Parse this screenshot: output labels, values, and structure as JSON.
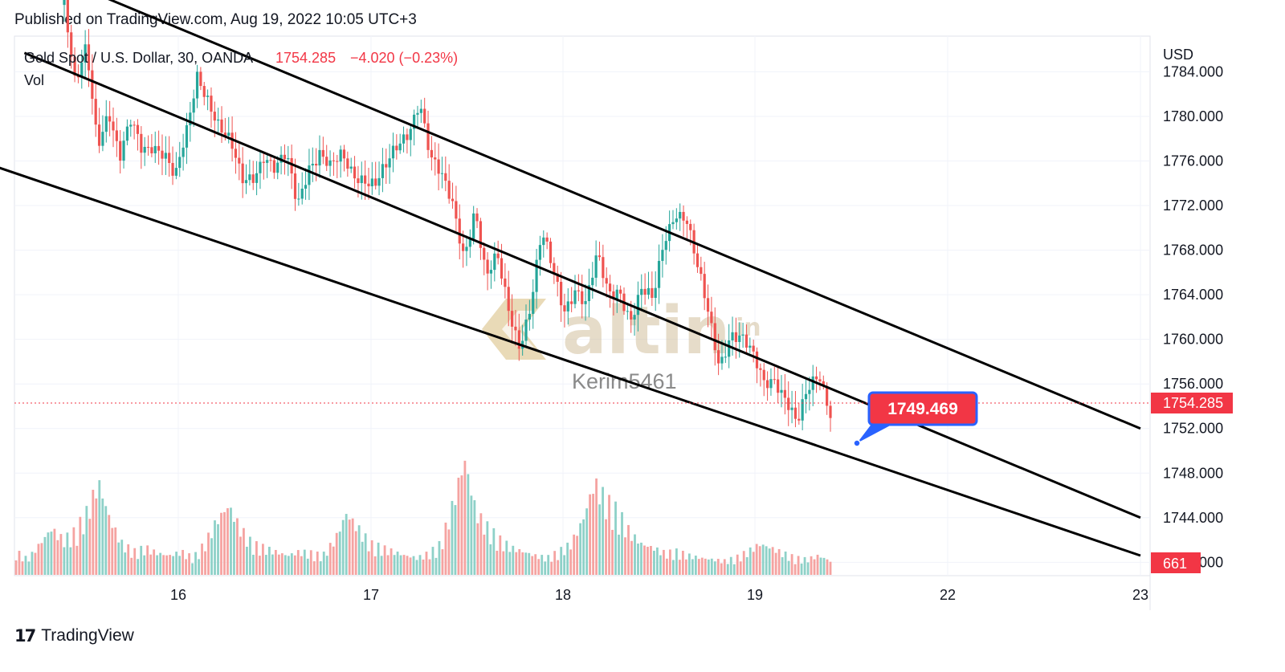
{
  "published": "Published on TradingView.com, Aug 19, 2022 10:05 UTC+3",
  "footer": {
    "brand": "TradingView",
    "logo_glyph": "17"
  },
  "legend": {
    "symbol": "Gold Spot / U.S. Dollar, 30, OANDA",
    "price": "1754.285",
    "change": "−4.020 (−0.23%)",
    "vol_label": "Vol"
  },
  "watermark": {
    "brand": "altin",
    "brand_suffix": "in",
    "author": "Kerim5461"
  },
  "annotation": {
    "price_label": "1749.469"
  },
  "colors": {
    "up": "#26a69a",
    "down": "#ef5350",
    "vol_up": "#8ed1c8",
    "vol_down": "#f5a3a1",
    "label_bg": "#f23645",
    "annotation_border": "#2962ff",
    "watermark": "#c9a24a"
  },
  "chart_data": {
    "type": "candlestick",
    "currency": "USD",
    "y_ticks": [
      "1784.000",
      "1780.000",
      "1776.000",
      "1772.000",
      "1768.000",
      "1764.000",
      "1760.000",
      "1756.000",
      "1752.000",
      "1748.000",
      "1744.000",
      "1740.000"
    ],
    "ylim": [
      1738.8,
      1787.2
    ],
    "x_ticks": [
      "16",
      "17",
      "18",
      "19",
      "22",
      "23"
    ],
    "last_price": "1754.285",
    "last_volume": "661",
    "trendlines_price_at_date_ticks": [
      {
        "name": "upper-channel",
        "points": [
          [
            15.6,
            1790.8
          ],
          [
            17.33,
            1782.5
          ],
          [
            19.0,
            1766.5
          ],
          [
            23.0,
            1752.0
          ]
        ]
      },
      {
        "name": "middle-channel",
        "points": [
          [
            15.2,
            1785.7
          ],
          [
            16.5,
            1776.6
          ],
          [
            18.6,
            1763.6
          ],
          [
            23.0,
            1744.0
          ]
        ]
      },
      {
        "name": "lower-channel",
        "points": [
          [
            15.0,
            1775.8
          ],
          [
            15.6,
            1773.0
          ],
          [
            17.8,
            1761.3
          ],
          [
            23.0,
            1740.6
          ]
        ]
      }
    ],
    "price_path": [
      1790,
      1782,
      1786,
      1778,
      1781,
      1776,
      1779,
      1777,
      1778,
      1777,
      1774,
      1778,
      1784,
      1782,
      1779,
      1777,
      1774,
      1775,
      1777,
      1775,
      1776,
      1772,
      1776,
      1777,
      1775,
      1776,
      1775,
      1775,
      1774,
      1775,
      1777,
      1779,
      1782,
      1776,
      1774,
      1772,
      1768,
      1772,
      1765,
      1767,
      1763,
      1760,
      1763,
      1769,
      1766,
      1763,
      1765,
      1763,
      1767,
      1764,
      1765,
      1762,
      1764,
      1763,
      1769,
      1772,
      1771,
      1766,
      1762,
      1758,
      1761,
      1760,
      1758,
      1756,
      1757,
      1755,
      1752,
      1755,
      1757,
      1754
    ],
    "volume_path": [
      30,
      20,
      40,
      60,
      45,
      55,
      80,
      120,
      70,
      40,
      30,
      35,
      28,
      25,
      30,
      22,
      40,
      70,
      90,
      60,
      40,
      35,
      30,
      25,
      30,
      28,
      25,
      45,
      80,
      60,
      40,
      35,
      30,
      25,
      22,
      28,
      40,
      90,
      150,
      80,
      60,
      45,
      35,
      30,
      25,
      22,
      30,
      40,
      70,
      120,
      95,
      80,
      55,
      40,
      35,
      28,
      30,
      25,
      22,
      20,
      18,
      22,
      30,
      40,
      35,
      28,
      22,
      20,
      25,
      18
    ]
  }
}
